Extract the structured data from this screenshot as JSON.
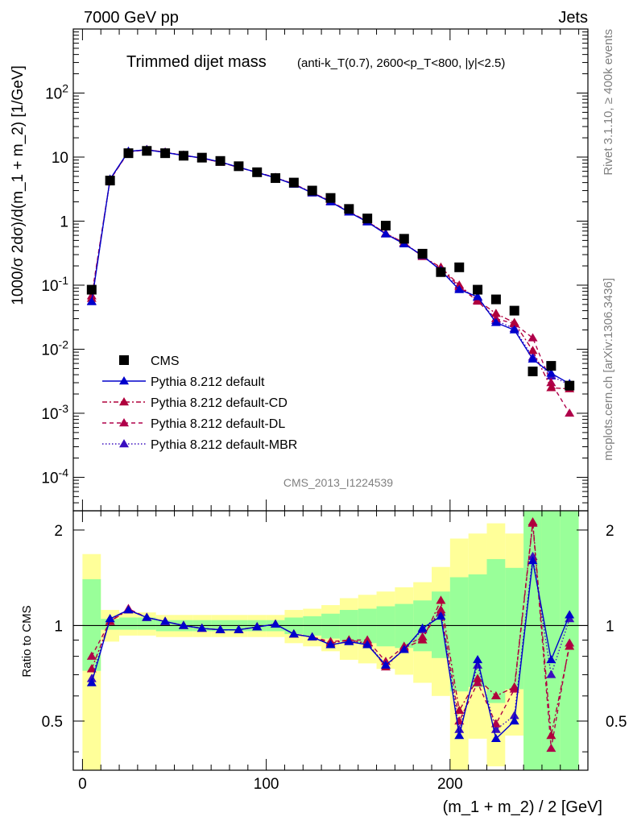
{
  "header": {
    "left": "7000 GeV pp",
    "right": "Jets",
    "side_right_1": "Rivet 3.1.10, ≥ 400k events",
    "side_right_2": "mcplots.cern.ch [arXiv:1306.3436]"
  },
  "chart_data": [
    {
      "type": "line",
      "title": "Trimmed dijet mass",
      "subtitle": "(anti-k_T(0.7), 2600<p_T<800, |y|<2.5)",
      "watermark": "CMS_2013_I1224539",
      "ylabel": "1000/σ 2dσ)/d(m_1 + m_2) [1/GeV]",
      "yscale": "log",
      "ylim": [
        3e-05,
        1000
      ],
      "xlim": [
        -5,
        275
      ],
      "ytick_labels": [
        "10^{-4}",
        "10^{-3}",
        "10^{-2}",
        "10^{-1}",
        "1",
        "10",
        "10^{2}"
      ],
      "legend_placement": "lower-left",
      "x": [
        5,
        15,
        25,
        35,
        45,
        55,
        65,
        75,
        85,
        95,
        105,
        115,
        125,
        135,
        145,
        155,
        165,
        175,
        185,
        195,
        205,
        215,
        225,
        235,
        245,
        255,
        265
      ],
      "series": [
        {
          "name": "CMS",
          "style": "marker",
          "color": "#000000",
          "values": [
            0.085,
            4.3,
            11.5,
            12.5,
            11.5,
            10.5,
            9.8,
            8.7,
            7.2,
            5.8,
            4.7,
            4.0,
            3.0,
            2.3,
            1.55,
            1.1,
            0.85,
            0.53,
            0.31,
            0.16,
            0.19,
            0.085,
            0.06,
            0.04,
            0.0045,
            0.0055,
            0.0027
          ]
        },
        {
          "name": "Pythia 8.212 default",
          "style": "solid",
          "color": "#0000cc",
          "values": [
            0.055,
            4.5,
            12.3,
            13.0,
            11.8,
            10.6,
            9.7,
            8.4,
            6.95,
            5.75,
            4.75,
            3.75,
            2.75,
            2.0,
            1.38,
            0.97,
            0.63,
            0.44,
            0.29,
            0.17,
            0.085,
            0.066,
            0.026,
            0.02,
            0.007,
            0.0042,
            0.0029
          ]
        },
        {
          "name": "Pythia 8.212 default-CD",
          "style": "dashdot",
          "color": "#b0003c",
          "values": [
            0.062,
            4.4,
            12.2,
            13.1,
            11.9,
            10.7,
            9.6,
            8.3,
            6.9,
            5.8,
            4.8,
            3.8,
            2.8,
            2.05,
            1.4,
            1.0,
            0.64,
            0.46,
            0.28,
            0.19,
            0.1,
            0.058,
            0.036,
            0.026,
            0.0095,
            0.0025,
            0.0024
          ]
        },
        {
          "name": "Pythia 8.212 default-DL",
          "style": "dashed",
          "color": "#b0004a",
          "values": [
            0.068,
            4.4,
            12.0,
            13.0,
            11.9,
            10.6,
            9.6,
            8.3,
            6.9,
            5.75,
            4.75,
            3.8,
            2.75,
            2.05,
            1.4,
            0.99,
            0.64,
            0.46,
            0.28,
            0.18,
            0.095,
            0.056,
            0.03,
            0.025,
            0.015,
            0.003,
            0.001
          ]
        },
        {
          "name": "Pythia 8.212 default-MBR",
          "style": "dotted",
          "color": "#3a0fbf",
          "values": [
            0.056,
            4.5,
            12.2,
            13.0,
            11.9,
            10.6,
            9.65,
            8.35,
            6.95,
            5.75,
            4.75,
            3.75,
            2.78,
            2.0,
            1.38,
            0.98,
            0.63,
            0.45,
            0.29,
            0.17,
            0.09,
            0.064,
            0.028,
            0.021,
            0.0075,
            0.0038,
            0.0028
          ]
        }
      ]
    },
    {
      "type": "line",
      "ylabel": "Ratio to CMS",
      "xlabel": "(m_1 + m_2) / 2 [GeV]",
      "ylim": [
        0.35,
        2.3
      ],
      "xlim": [
        -5,
        275
      ],
      "ytick_labels": [
        "0.5",
        "1",
        "2"
      ],
      "xtick_labels": [
        "0",
        "100",
        "200"
      ],
      "reference_line": 1,
      "band_edges": [
        0,
        10,
        20,
        30,
        40,
        50,
        60,
        70,
        80,
        90,
        100,
        110,
        120,
        130,
        140,
        150,
        160,
        170,
        180,
        190,
        200,
        210,
        220,
        230,
        240,
        250,
        260,
        270
      ],
      "band_inner": [
        [
          0.72,
          1.4
        ],
        [
          0.97,
          1.05
        ],
        [
          0.97,
          1.06
        ],
        [
          0.97,
          1.06
        ],
        [
          0.96,
          1.04
        ],
        [
          0.96,
          1.04
        ],
        [
          0.96,
          1.04
        ],
        [
          0.96,
          1.04
        ],
        [
          0.96,
          1.04
        ],
        [
          0.96,
          1.04
        ],
        [
          0.96,
          1.04
        ],
        [
          0.94,
          1.06
        ],
        [
          0.93,
          1.07
        ],
        [
          0.91,
          1.09
        ],
        [
          0.89,
          1.12
        ],
        [
          0.88,
          1.13
        ],
        [
          0.86,
          1.15
        ],
        [
          0.85,
          1.17
        ],
        [
          0.83,
          1.2
        ],
        [
          0.79,
          1.28
        ],
        [
          0.62,
          1.42
        ],
        [
          0.64,
          1.45
        ],
        [
          0.57,
          1.62
        ],
        [
          0.63,
          1.52
        ],
        [
          0.35,
          2.3
        ],
        [
          0.35,
          2.3
        ],
        [
          0.35,
          2.3
        ]
      ],
      "band_outer": [
        [
          0.35,
          1.68
        ],
        [
          0.89,
          1.12
        ],
        [
          0.93,
          1.1
        ],
        [
          0.93,
          1.1
        ],
        [
          0.92,
          1.08
        ],
        [
          0.92,
          1.08
        ],
        [
          0.92,
          1.08
        ],
        [
          0.92,
          1.08
        ],
        [
          0.92,
          1.08
        ],
        [
          0.92,
          1.08
        ],
        [
          0.92,
          1.08
        ],
        [
          0.88,
          1.12
        ],
        [
          0.86,
          1.13
        ],
        [
          0.83,
          1.16
        ],
        [
          0.78,
          1.22
        ],
        [
          0.76,
          1.25
        ],
        [
          0.73,
          1.28
        ],
        [
          0.7,
          1.32
        ],
        [
          0.66,
          1.37
        ],
        [
          0.6,
          1.53
        ],
        [
          0.35,
          1.88
        ],
        [
          0.44,
          1.95
        ],
        [
          0.36,
          2.1
        ],
        [
          0.45,
          1.95
        ],
        [
          0.35,
          2.3
        ],
        [
          0.35,
          2.3
        ],
        [
          0.35,
          2.3
        ]
      ],
      "x": [
        5,
        15,
        25,
        35,
        45,
        55,
        65,
        75,
        85,
        95,
        105,
        115,
        125,
        135,
        145,
        155,
        165,
        175,
        185,
        195,
        205,
        215,
        225,
        235,
        245,
        255,
        265
      ],
      "series": [
        {
          "name": "Pythia 8.212 default",
          "style": "solid",
          "color": "#0000cc",
          "values": [
            0.66,
            1.05,
            1.12,
            1.06,
            1.03,
            1.0,
            0.98,
            0.97,
            0.97,
            0.99,
            1.01,
            0.94,
            0.92,
            0.87,
            0.89,
            0.87,
            0.75,
            0.84,
            0.98,
            1.07,
            0.45,
            0.78,
            0.44,
            0.5,
            1.6,
            0.78,
            1.08
          ]
        },
        {
          "name": "Pythia 8.212 default-CD",
          "style": "dashdot",
          "color": "#b0003c",
          "values": [
            0.73,
            1.03,
            1.12,
            1.06,
            1.03,
            1.0,
            0.98,
            0.97,
            0.97,
            0.99,
            1.01,
            0.94,
            0.92,
            0.88,
            0.9,
            0.88,
            0.74,
            0.85,
            0.9,
            1.2,
            0.54,
            0.68,
            0.6,
            0.64,
            2.12,
            0.45,
            0.86
          ]
        },
        {
          "name": "Pythia 8.212 default-DL",
          "style": "dashed",
          "color": "#b0004a",
          "values": [
            0.8,
            1.03,
            1.13,
            1.06,
            1.03,
            1.0,
            0.98,
            0.97,
            0.97,
            0.99,
            1.01,
            0.94,
            0.92,
            0.89,
            0.9,
            0.9,
            0.77,
            0.86,
            0.92,
            1.12,
            0.5,
            0.66,
            0.49,
            0.63,
            2.1,
            0.41,
            0.88
          ]
        },
        {
          "name": "Pythia 8.212 default-MBR",
          "style": "dotted",
          "color": "#3a0fbf",
          "values": [
            0.68,
            1.05,
            1.12,
            1.06,
            1.03,
            1.0,
            0.98,
            0.97,
            0.97,
            0.99,
            1.01,
            0.94,
            0.92,
            0.87,
            0.89,
            0.88,
            0.75,
            0.84,
            0.97,
            1.1,
            0.47,
            0.75,
            0.47,
            0.52,
            1.65,
            0.7,
            1.05
          ]
        }
      ]
    }
  ]
}
